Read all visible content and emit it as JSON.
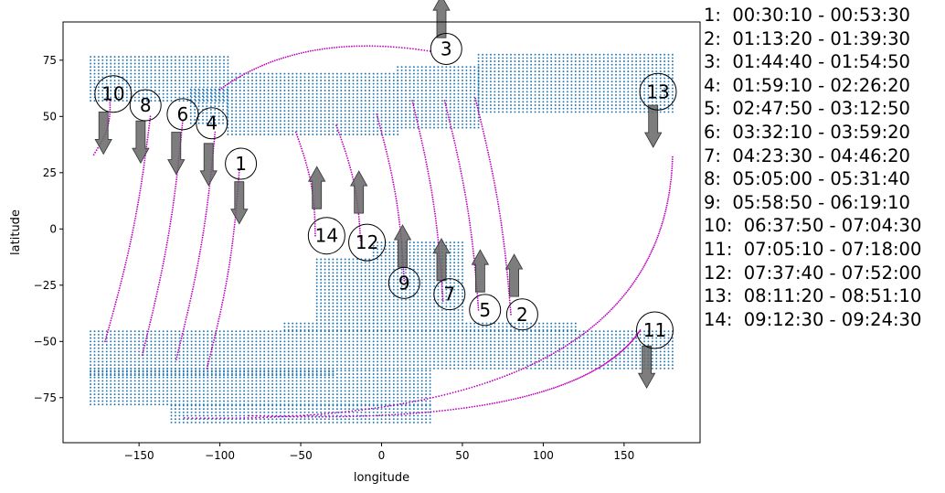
{
  "chart_data": {
    "type": "scatter",
    "xlabel": "longitude",
    "ylabel": "latitude",
    "xlim": [
      -197,
      197
    ],
    "ylim": [
      -95,
      92
    ],
    "xticks": [
      -150,
      -100,
      -50,
      0,
      50,
      100,
      150
    ],
    "yticks": [
      -75,
      -50,
      -25,
      0,
      25,
      50,
      75
    ],
    "grid": false,
    "colors": {
      "coverage": "#1f77b4",
      "track": "#bf00bf",
      "arrow": "#666666"
    },
    "coverage_regions": [
      {
        "lat_min": 57,
        "lat_max": 77,
        "lon_min": -180,
        "lon_max": -95
      },
      {
        "lat_min": 47,
        "lat_max": 62,
        "lon_min": -118,
        "lon_max": -95
      },
      {
        "lat_min": 42,
        "lat_max": 70,
        "lon_min": -95,
        "lon_max": 10
      },
      {
        "lat_min": 45,
        "lat_max": 72,
        "lon_min": 10,
        "lon_max": 60
      },
      {
        "lat_min": 52,
        "lat_max": 78,
        "lon_min": 60,
        "lon_max": 180
      },
      {
        "lat_min": -42,
        "lat_max": -5,
        "lon_min": -5,
        "lon_max": 50
      },
      {
        "lat_min": -42,
        "lat_max": -13,
        "lon_min": -40,
        "lon_max": -5
      },
      {
        "lat_min": -45,
        "lat_max": -42,
        "lon_min": -60,
        "lon_max": 120
      },
      {
        "lat_min": -62,
        "lat_max": -45,
        "lon_min": -180,
        "lon_max": 180
      },
      {
        "lat_min": -65,
        "lat_max": -62,
        "lon_min": -180,
        "lon_max": -30
      },
      {
        "lat_min": -78,
        "lat_max": -62,
        "lon_min": -180,
        "lon_max": 30
      },
      {
        "lat_min": -86,
        "lat_max": -78,
        "lon_min": -130,
        "lon_max": 30
      }
    ],
    "tracks": [
      {
        "id": "1",
        "label_lon": -87,
        "label_lat": 29,
        "start": [
          -88,
          26
        ],
        "end": [
          -108,
          -62
        ],
        "arrow": "down",
        "arrow_lon": -88,
        "arrow_lat": 21
      },
      {
        "id": "2",
        "label_lon": 87,
        "label_lat": -38,
        "start": [
          80,
          -38
        ],
        "end": [
          58,
          58
        ],
        "arrow": "up",
        "arrow_lon": 82,
        "arrow_lat": -30
      },
      {
        "id": "3",
        "label_lon": 40,
        "label_lat": 80,
        "start": [
          -100,
          62
        ],
        "end": [
          30,
          79
        ],
        "arrow": "up",
        "arrow_lon": 37,
        "arrow_lat": 85
      },
      {
        "id": "4",
        "label_lon": -105,
        "label_lat": 47,
        "start": [
          -103,
          43
        ],
        "end": [
          -127,
          -58
        ],
        "arrow": "down",
        "arrow_lon": -107,
        "arrow_lat": 38
      },
      {
        "id": "5",
        "label_lon": 64,
        "label_lat": -36,
        "start": [
          60,
          -36
        ],
        "end": [
          39,
          57
        ],
        "arrow": "up",
        "arrow_lon": 61,
        "arrow_lat": -28
      },
      {
        "id": "6",
        "label_lon": -123,
        "label_lat": 51,
        "start": [
          -123,
          48
        ],
        "end": [
          -148,
          -56
        ],
        "arrow": "down",
        "arrow_lon": -127,
        "arrow_lat": 43
      },
      {
        "id": "7",
        "label_lon": 42,
        "label_lat": -29,
        "start": [
          38,
          -32
        ],
        "end": [
          19,
          57
        ],
        "arrow": "up",
        "arrow_lon": 37,
        "arrow_lat": -23
      },
      {
        "id": "8",
        "label_lon": -146,
        "label_lat": 55,
        "start": [
          -143,
          50
        ],
        "end": [
          -171,
          -50
        ],
        "arrow": "down",
        "arrow_lon": -149,
        "arrow_lat": 48
      },
      {
        "id": "9",
        "label_lon": 14,
        "label_lat": -24,
        "start": [
          14,
          -23
        ],
        "end": [
          -3,
          51
        ],
        "arrow": "up",
        "arrow_lon": 13,
        "arrow_lat": -17
      },
      {
        "id": "10",
        "label_lon": -166,
        "label_lat": 60,
        "start": [
          -168,
          57
        ],
        "end": [
          -178,
          33
        ],
        "arrow": "down",
        "arrow_lon": -172,
        "arrow_lat": 52
      },
      {
        "id": "11",
        "label_lon": 169,
        "label_lat": -45,
        "start": [
          -82,
          -83
        ],
        "end": [
          160,
          -45
        ],
        "arrow": "down",
        "arrow_lon": 164,
        "arrow_lat": -52
      },
      {
        "id": "12",
        "label_lon": -9,
        "label_lat": -6,
        "start": [
          -13,
          -5
        ],
        "end": [
          -28,
          46
        ],
        "arrow": "up",
        "arrow_lon": -14,
        "arrow_lat": 7
      },
      {
        "id": "13",
        "label_lon": 171,
        "label_lat": 61,
        "start": [
          180,
          32
        ],
        "end": [
          -122,
          -84
        ],
        "arrow": "down",
        "arrow_lon": 168,
        "arrow_lat": 55
      },
      {
        "id": "14",
        "label_lon": -34,
        "label_lat": -3,
        "start": [
          -41,
          -3
        ],
        "end": [
          -53,
          43
        ],
        "arrow": "up",
        "arrow_lon": -40,
        "arrow_lat": 9
      }
    ],
    "legend_entries": [
      "1:  00:30:10 - 00:53:30",
      "2:  01:13:20 - 01:39:30",
      "3:  01:44:40 - 01:54:50",
      "4:  01:59:10 - 02:26:20",
      "5:  02:47:50 - 03:12:50",
      "6:  03:32:10 - 03:59:20",
      "7:  04:23:30 - 04:46:20",
      "8:  05:05:00 - 05:31:40",
      "9:  05:58:50 - 06:19:10",
      "10:  06:37:50 - 07:04:30",
      "11:  07:05:10 - 07:18:00",
      "12:  07:37:40 - 07:52:00",
      "13:  08:11:20 - 08:51:10",
      "14:  09:12:30 - 09:24:30"
    ]
  }
}
